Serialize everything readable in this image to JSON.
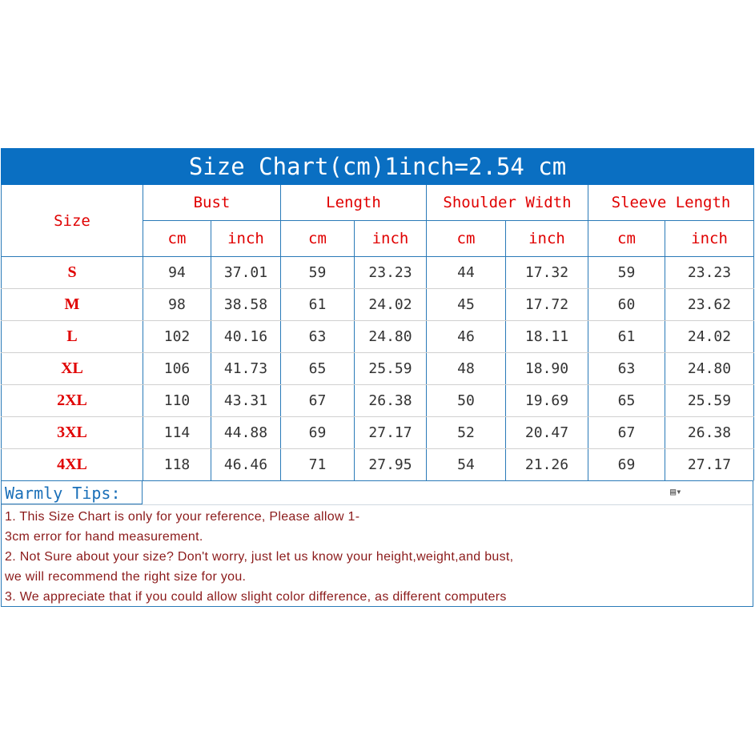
{
  "title": "Size Chart(cm)1inch=2.54 cm",
  "headers": {
    "size": "Size",
    "groups": [
      "Bust",
      "Length",
      "Shoulder Width",
      "Sleeve Length"
    ],
    "units": [
      "cm",
      "inch",
      "cm",
      "inch",
      "cm",
      "inch",
      "cm",
      "inch"
    ]
  },
  "rows": [
    [
      "S",
      "94",
      "37.01",
      "59",
      "23.23",
      "44",
      "17.32",
      "59",
      "23.23"
    ],
    [
      "M",
      "98",
      "38.58",
      "61",
      "24.02",
      "45",
      "17.72",
      "60",
      "23.62"
    ],
    [
      "L",
      "102",
      "40.16",
      "63",
      "24.80",
      "46",
      "18.11",
      "61",
      "24.02"
    ],
    [
      "XL",
      "106",
      "41.73",
      "65",
      "25.59",
      "48",
      "18.90",
      "63",
      "24.80"
    ],
    [
      "2XL",
      "110",
      "43.31",
      "67",
      "26.38",
      "50",
      "19.69",
      "65",
      "25.59"
    ],
    [
      "3XL",
      "114",
      "44.88",
      "69",
      "27.17",
      "52",
      "20.47",
      "67",
      "26.38"
    ],
    [
      "4XL",
      "118",
      "46.46",
      "71",
      "27.95",
      "54",
      "21.26",
      "69",
      "27.17"
    ]
  ],
  "tips": {
    "title": "Warmly  Tips:",
    "lines": [
      "1. This Size Chart is only for your reference, Please allow 1-",
      "3cm error for hand measurement.",
      "2. Not Sure about your size? Don't worry, just let us know your height,weight,and bust,",
      "we will recommend the right size  for you.",
      "3. We appreciate that if you could allow  slight color difference, as different computers"
    ]
  },
  "icons": {
    "paste_options": "paste-options-icon"
  },
  "colors": {
    "title_bg": "#0a6fc2",
    "header_text": "#e00000",
    "tips_title": "#1a6fb8",
    "tips_text": "#8b1a1a"
  }
}
